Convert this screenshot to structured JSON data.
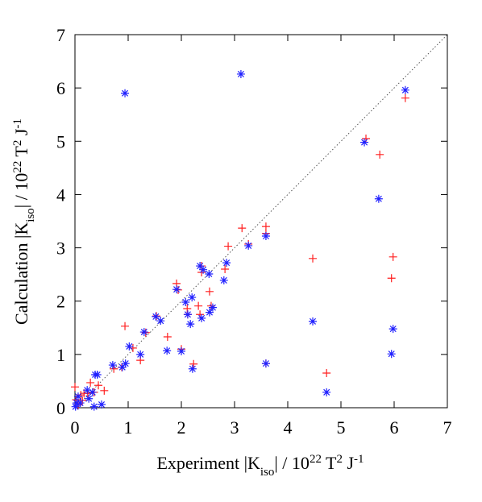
{
  "chart_data": {
    "type": "scatter",
    "xlabel": [
      {
        "text": "Experiment |K"
      },
      {
        "sub": "iso"
      },
      {
        "text": "| / 10"
      },
      {
        "sup": "22"
      },
      {
        "text": " T"
      },
      {
        "sup": "2"
      },
      {
        "text": " J"
      },
      {
        "sup": "-1"
      }
    ],
    "ylabel": [
      {
        "text": "Calculation |K"
      },
      {
        "sub": "iso"
      },
      {
        "text": "| / 10"
      },
      {
        "sup": "22"
      },
      {
        "text": " T"
      },
      {
        "sup": "2"
      },
      {
        "text": " J"
      },
      {
        "sup": "-1"
      }
    ],
    "xlim": [
      0,
      7
    ],
    "ylim": [
      0,
      7
    ],
    "xticks": [
      0,
      1,
      2,
      3,
      4,
      5,
      6,
      7
    ],
    "yticks": [
      0,
      1,
      2,
      3,
      4,
      5,
      6,
      7
    ],
    "series": [
      {
        "marker": "plus",
        "color": "#ff2020",
        "x": [
          5.47,
          6.21,
          5.73,
          4.47,
          5.98,
          5.95,
          4.73,
          3.59,
          3.59,
          3.59,
          3.14,
          3.26,
          2.88,
          2.82,
          2.38,
          2.38,
          2.53,
          1.91,
          1.94,
          1.53,
          1.74,
          1.33,
          0.94,
          1.09,
          1.23,
          2.23,
          2.0,
          2.35,
          2.56,
          2.11,
          2.32,
          2.12,
          0.88,
          0.73,
          0.55,
          0.44,
          0.36,
          0.29,
          0.11,
          0.14,
          0.06,
          0.02,
          0.0,
          0.17,
          0.06,
          0.24
        ],
        "y": [
          5.05,
          5.81,
          4.75,
          2.8,
          2.83,
          2.43,
          0.65,
          0.83,
          3.4,
          3.27,
          3.37,
          3.07,
          3.03,
          2.6,
          2.66,
          2.54,
          2.18,
          2.33,
          2.21,
          1.72,
          1.33,
          1.41,
          1.53,
          1.12,
          0.89,
          0.82,
          1.1,
          1.75,
          1.91,
          1.86,
          1.91,
          1.75,
          0.76,
          0.73,
          0.32,
          0.42,
          0.29,
          0.47,
          0.24,
          0.14,
          0.05,
          0.15,
          0.39,
          0.27,
          0.09,
          0.27
        ]
      },
      {
        "marker": "asterisk",
        "color": "#2020ff",
        "x": [
          0.94,
          3.12,
          6.21,
          5.44,
          5.71,
          3.59,
          3.26,
          2.85,
          2.8,
          2.35,
          2.41,
          2.52,
          1.91,
          1.52,
          1.61,
          1.3,
          1.23,
          1.02,
          0.95,
          0.89,
          0.71,
          0.38,
          0.42,
          1.73,
          2.0,
          2.08,
          2.2,
          2.12,
          2.17,
          2.53,
          2.59,
          2.38,
          2.21,
          3.59,
          4.47,
          4.73,
          5.98,
          5.95,
          0.33,
          0.5,
          0.36,
          0.23,
          0.06,
          0.03,
          0.01,
          0.1,
          0.26
        ],
        "y": [
          5.9,
          6.26,
          5.96,
          4.98,
          3.92,
          3.22,
          3.04,
          2.72,
          2.39,
          2.66,
          2.59,
          2.51,
          2.22,
          1.71,
          1.63,
          1.42,
          1.0,
          1.15,
          0.83,
          0.76,
          0.8,
          0.62,
          0.62,
          1.07,
          1.06,
          1.98,
          2.07,
          1.75,
          1.57,
          1.79,
          1.88,
          1.68,
          0.73,
          0.83,
          1.62,
          0.29,
          1.48,
          1.01,
          0.29,
          0.06,
          0.02,
          0.33,
          0.21,
          0.09,
          0.02,
          0.09,
          0.17
        ]
      }
    ]
  }
}
